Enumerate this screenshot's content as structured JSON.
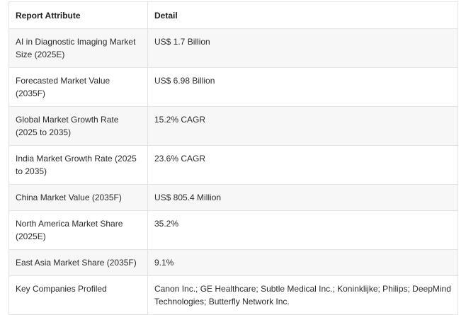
{
  "table": {
    "headers": [
      "Report Attribute",
      "Detail"
    ],
    "rows": [
      [
        "AI in Diagnostic Imaging Market Size (2025E)",
        "US$ 1.7 Billion"
      ],
      [
        "Forecasted Market Value (2035F)",
        "US$ 6.98 Billion"
      ],
      [
        "Global Market Growth Rate (2025 to 2035)",
        "15.2% CAGR"
      ],
      [
        "India Market Growth Rate (2025 to 2035)",
        "23.6% CAGR"
      ],
      [
        "China Market Value (2035F)",
        "US$ 805.4 Million"
      ],
      [
        "North America Market Share (2025E)",
        "35.2%"
      ],
      [
        "East Asia Market Share (2035F)",
        "9.1%"
      ],
      [
        "Key Companies Profiled",
        "Canon Inc.; GE Healthcare; Subtle Medical Inc.; Koninklijke; Philips; DeepMind Technologies; Butterfly Network Inc."
      ]
    ]
  }
}
